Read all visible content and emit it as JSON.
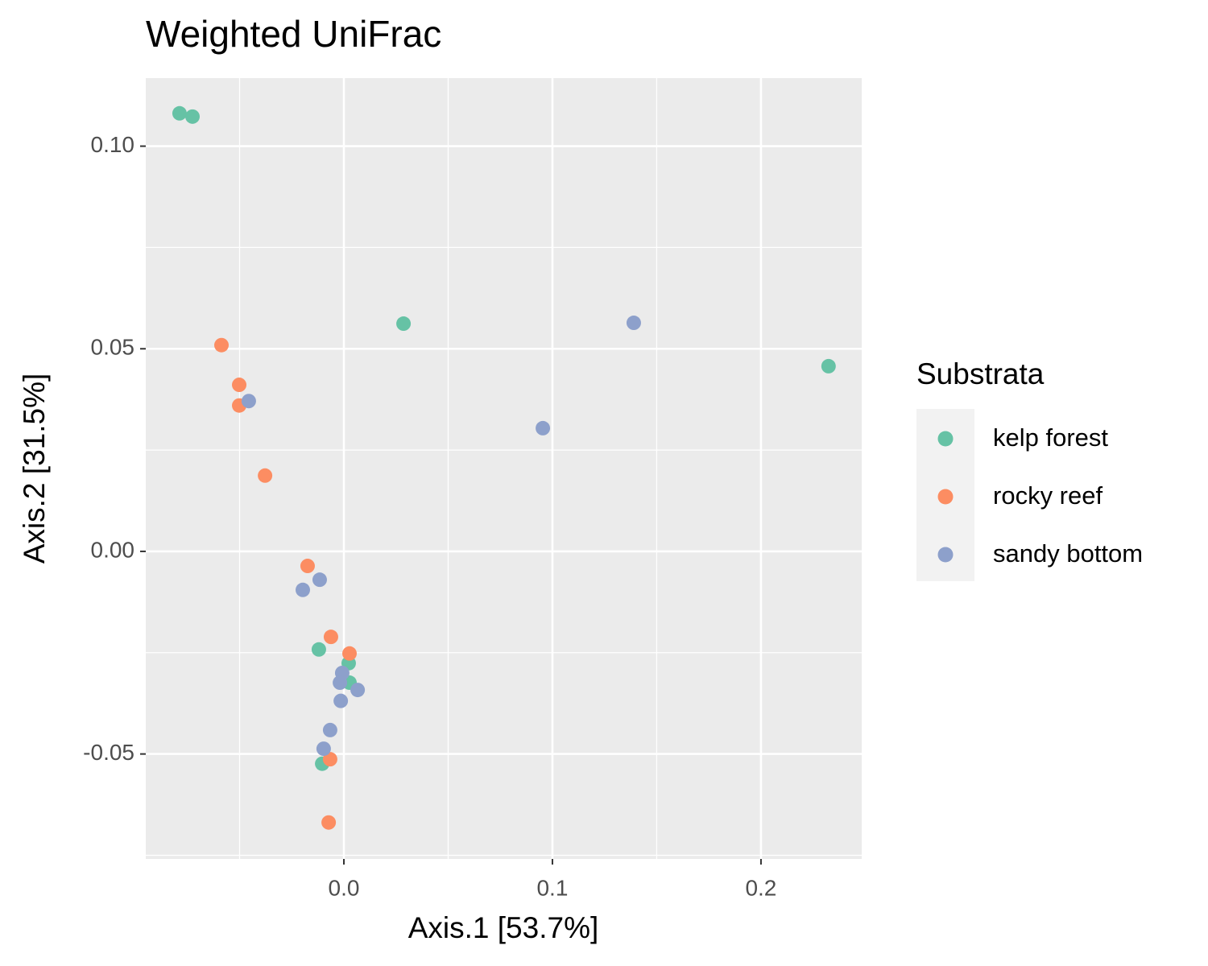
{
  "chart_data": {
    "type": "scatter",
    "title": "Weighted UniFrac",
    "x_label": "Axis.1   [53.7%]",
    "y_label": "Axis.2   [31.5%]",
    "legend_title": "Substrata",
    "legend_position": "right",
    "grid": true,
    "xlim": [
      -0.095,
      0.2483
    ],
    "ylim": [
      -0.0759,
      0.1168
    ],
    "xticks": [
      {
        "value": 0,
        "label": "0.0"
      },
      0.1,
      0.2
    ],
    "yticks": [
      {
        "value": 0.1,
        "label": "0.10"
      },
      0.05,
      {
        "value": 0,
        "label": "0.00"
      },
      -0.05
    ],
    "series": [
      {
        "name": "kelp forest",
        "color": "#66c2a5",
        "x": [
          -0.0788,
          -0.0726,
          0.0286,
          0.2324,
          -0.012,
          0.0023,
          0.0027,
          -0.0104
        ],
        "values": [
          0.1081,
          0.1073,
          0.0562,
          0.0457,
          -0.0242,
          -0.0276,
          -0.0324,
          -0.0524
        ]
      },
      {
        "name": "rocky reef",
        "color": "#fc8d62",
        "x": [
          -0.0587,
          -0.0502,
          -0.0502,
          -0.0378,
          -0.0174,
          -0.0062,
          0.0027,
          -0.0066,
          -0.0073
        ],
        "values": [
          0.0509,
          0.0411,
          0.036,
          0.0187,
          -0.0036,
          -0.0211,
          -0.0252,
          -0.0513,
          -0.0669
        ]
      },
      {
        "name": "sandy bottom",
        "color": "#8da0cb",
        "x": [
          -0.0456,
          0.139,
          0.0954,
          -0.0116,
          -0.0197,
          -0.0008,
          -0.0019,
          -0.0015,
          0.0066,
          -0.0066,
          -0.0097
        ],
        "values": [
          0.0371,
          0.0564,
          0.0304,
          -0.007,
          -0.0095,
          -0.03,
          -0.0324,
          -0.0369,
          -0.0342,
          -0.0441,
          -0.0487
        ]
      }
    ]
  }
}
